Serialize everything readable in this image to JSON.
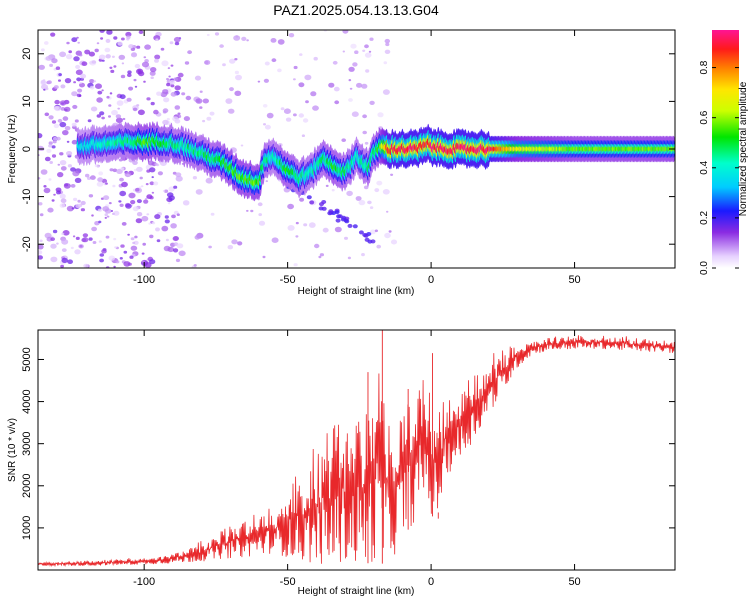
{
  "figure": {
    "title": "PAZ1.2025.054.13.13.G04"
  },
  "chart_data": [
    {
      "type": "heatmap",
      "name": "doppler-spectrogram",
      "xlabel": "Height of straight line (km)",
      "ylabel": "Frequency (Hz)",
      "xlim": [
        -137,
        85
      ],
      "ylim": [
        -25,
        25
      ],
      "xticks": [
        -100,
        -50,
        0,
        50
      ],
      "xtick_labels": [
        "-100",
        "-50",
        "0",
        "50"
      ],
      "yticks": [
        -20,
        -10,
        0,
        10,
        20
      ],
      "ytick_labels": [
        "-20",
        "-10",
        "0",
        "10",
        "20"
      ],
      "grid": false,
      "ridge": {
        "x": [
          -123,
          -115,
          -105,
          -100,
          -92,
          -86,
          -80,
          -72,
          -66,
          -60,
          -58,
          -55,
          -51,
          -46,
          -42,
          -38,
          -34,
          -30,
          -26,
          -22,
          -20,
          -18,
          -15,
          -10,
          -5,
          -1,
          0,
          5,
          10,
          20,
          30,
          50,
          70,
          85
        ],
        "freq": [
          0.5,
          1.0,
          1.5,
          1.5,
          1.5,
          0.5,
          -1.0,
          -3.0,
          -6.0,
          -7.0,
          -2.0,
          -1.5,
          -4.0,
          -6.0,
          -5.0,
          -2.0,
          -3.5,
          -5.0,
          -1.5,
          -4.0,
          -1.0,
          0.5,
          0.0,
          0.0,
          0.0,
          1.0,
          0.5,
          0.0,
          0.0,
          0.0,
          0.0,
          0.0,
          0.0,
          0.0
        ],
        "amplitude": [
          0.4,
          0.45,
          0.5,
          0.6,
          0.5,
          0.5,
          0.5,
          0.55,
          0.6,
          0.6,
          0.5,
          0.45,
          0.55,
          0.5,
          0.45,
          0.5,
          0.55,
          0.5,
          0.45,
          0.5,
          0.5,
          0.6,
          0.9,
          0.95,
          0.95,
          0.9,
          0.95,
          0.95,
          0.95,
          0.95,
          0.7,
          0.6,
          0.6,
          0.6
        ]
      },
      "colorbar": {
        "label": "Normalized spectral amplitude",
        "range": [
          0,
          0.95
        ],
        "ticks": [
          0,
          0.2,
          0.4,
          0.6,
          0.8
        ],
        "tick_labels": [
          "0.0",
          "0.2",
          "0.4",
          "0.6",
          "0.8"
        ]
      }
    },
    {
      "type": "line",
      "name": "snr-profile",
      "xlabel": "Height of straight line (km)",
      "ylabel": "SNR (10 * v/v)",
      "xlim": [
        -137,
        85
      ],
      "ylim": [
        0,
        5700
      ],
      "xticks": [
        -100,
        -50,
        0,
        50
      ],
      "xtick_labels": [
        "-100",
        "-50",
        "0",
        "50"
      ],
      "yticks": [
        1000,
        2000,
        3000,
        4000,
        5000
      ],
      "ytick_labels": [
        "1000",
        "2000",
        "3000",
        "4000",
        "5000"
      ],
      "grid": false,
      "series": [
        {
          "color": "#e8282b",
          "envelope": {
            "x": [
              -137,
              -120,
              -100,
              -90,
              -80,
              -75,
              -70,
              -65,
              -60,
              -55,
              -50,
              -45,
              -40,
              -35,
              -30,
              -25,
              -20,
              -18,
              -16,
              -14,
              -12,
              -10,
              -5,
              -2,
              0,
              2,
              5,
              10,
              15,
              20,
              25,
              30,
              35,
              40,
              50,
              60,
              70,
              85
            ],
            "low": [
              100,
              100,
              130,
              160,
              200,
              250,
              280,
              300,
              350,
              400,
              300,
              200,
              150,
              100,
              200,
              100,
              200,
              200,
              100,
              300,
              400,
              800,
              1200,
              1800,
              1300,
              1200,
              2200,
              2600,
              3100,
              3700,
              4200,
              4800,
              5100,
              5200,
              5250,
              5250,
              5200,
              5150
            ],
            "high": [
              200,
              230,
              300,
              400,
              700,
              900,
              1100,
              1300,
              1500,
              1600,
              2100,
              2600,
              3100,
              3600,
              3900,
              4100,
              4600,
              5700,
              4400,
              3900,
              4000,
              4200,
              4300,
              5100,
              4400,
              3900,
              4100,
              4400,
              4700,
              5100,
              5300,
              5400,
              5500,
              5550,
              5600,
              5600,
              5550,
              5450
            ]
          },
          "spikes": [
            {
              "x": -22,
              "y": 4700
            },
            {
              "x": -17,
              "y": 5700
            },
            {
              "x": -8,
              "y": 4300
            },
            {
              "x": 0.5,
              "y": 5150
            },
            {
              "x": 2.5,
              "y": 1220
            }
          ]
        }
      ]
    }
  ]
}
